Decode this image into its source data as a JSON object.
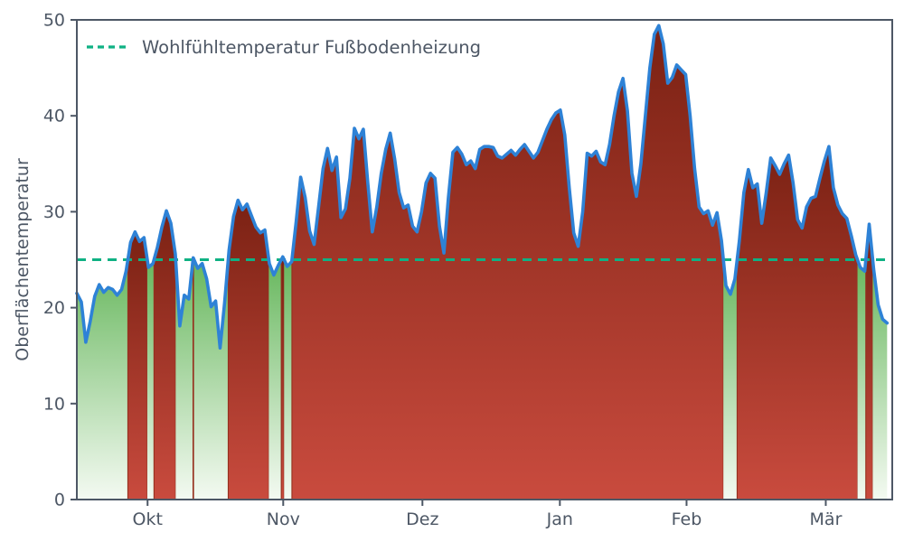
{
  "chart_data": {
    "type": "area",
    "title": "",
    "xlabel": "",
    "ylabel": "Oberflächentemperatur",
    "ylim": [
      0,
      50
    ],
    "yticks": [
      0,
      10,
      20,
      30,
      40,
      50
    ],
    "xticks": [
      {
        "label": "Okt",
        "day": 15.8
      },
      {
        "label": "Nov",
        "day": 46.1
      },
      {
        "label": "Dez",
        "day": 77.2
      },
      {
        "label": "Jan",
        "day": 107.9
      },
      {
        "label": "Feb",
        "day": 136.2
      },
      {
        "label": "Mär",
        "day": 167.3
      }
    ],
    "threshold": {
      "value": 25,
      "label": "Wohlfühltemperatur Fußbodenheizung"
    },
    "legend": {
      "position": "upper-left",
      "entries": [
        {
          "label": "Wohlfühltemperatur Fußbodenheizung",
          "style": "dashed"
        }
      ]
    },
    "grid": false,
    "series": [
      {
        "name": "Oberflächentemperatur",
        "x_unit": "day-index from mid-September, 1 point per day",
        "daily_values": [
          21.5,
          20.6,
          16.4,
          18.6,
          21.2,
          22.4,
          21.6,
          22.1,
          21.9,
          21.3,
          21.9,
          23.8,
          26.8,
          27.9,
          26.9,
          27.3,
          24.2,
          24.6,
          26.3,
          28.4,
          30.1,
          28.8,
          25.6,
          18.1,
          21.3,
          20.9,
          25.2,
          24.1,
          24.6,
          23.0,
          20.1,
          20.7,
          15.8,
          20.5,
          26.0,
          29.5,
          31.2,
          30.2,
          30.8,
          29.6,
          28.4,
          27.8,
          28.1,
          24.6,
          23.4,
          24.4,
          25.3,
          24.3,
          24.8,
          29.0,
          33.6,
          31.5,
          28.0,
          26.6,
          30.5,
          34.5,
          36.6,
          34.3,
          35.7,
          29.4,
          30.3,
          33.5,
          38.7,
          37.6,
          38.6,
          33.0,
          27.9,
          30.5,
          34.0,
          36.5,
          38.2,
          35.5,
          32.0,
          30.4,
          30.7,
          28.5,
          27.9,
          30.0,
          33.0,
          34.0,
          33.5,
          28.5,
          25.7,
          31.5,
          36.2,
          36.7,
          36.0,
          34.9,
          35.3,
          34.5,
          36.5,
          36.8,
          36.8,
          36.7,
          35.8,
          35.6,
          36.0,
          36.4,
          35.9,
          36.5,
          37.0,
          36.3,
          35.6,
          36.2,
          37.4,
          38.6,
          39.6,
          40.3,
          40.6,
          38.0,
          32.5,
          27.8,
          26.4,
          30.0,
          36.1,
          35.8,
          36.3,
          35.2,
          34.9,
          37.0,
          40.0,
          42.5,
          43.9,
          40.5,
          34.0,
          31.6,
          35.0,
          40.0,
          45.0,
          48.5,
          49.4,
          47.5,
          43.4,
          44.0,
          45.3,
          44.8,
          44.3,
          40.0,
          34.5,
          30.5,
          29.8,
          30.1,
          28.6,
          29.9,
          27.0,
          22.3,
          21.4,
          23.0,
          27.0,
          32.0,
          34.4,
          32.5,
          32.9,
          28.8,
          32.0,
          35.6,
          34.8,
          33.9,
          35.0,
          35.9,
          33.0,
          29.2,
          28.3,
          30.5,
          31.4,
          31.6,
          33.5,
          35.3,
          36.8,
          32.5,
          30.7,
          29.8,
          29.3,
          27.5,
          25.5,
          24.2,
          23.8,
          28.7,
          24.0,
          20.3,
          18.8,
          18.4
        ]
      }
    ],
    "colors": {
      "line": "#2e82d6",
      "threshold": "#0fb183",
      "axis": "#4d5765",
      "area_above_top": "#7a2113",
      "area_above_bottom": "#c94b3e",
      "area_above_edge": "#95301e",
      "area_below_top": "#67b75d",
      "area_below_bottom": "#f4faf2"
    }
  }
}
